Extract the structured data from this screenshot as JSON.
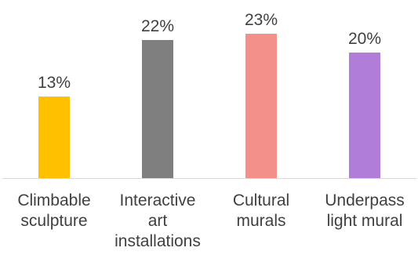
{
  "chart_data": {
    "type": "bar",
    "categories": [
      [
        "Climbable",
        "sculpture"
      ],
      [
        "Interactive",
        "art",
        "installations"
      ],
      [
        "Cultural",
        "murals"
      ],
      [
        "Underpass",
        "light mural"
      ]
    ],
    "values": [
      13,
      22,
      23,
      20
    ],
    "value_labels": [
      "13%",
      "22%",
      "23%",
      "20%"
    ],
    "colors": [
      "#FFC000",
      "#7F7F7F",
      "#F4908A",
      "#B07ED8"
    ],
    "axis_color": "#D9D9D9",
    "title": "",
    "xlabel": "",
    "ylabel": "",
    "ylim": [
      0,
      25
    ],
    "grid": false,
    "legend": "none"
  }
}
